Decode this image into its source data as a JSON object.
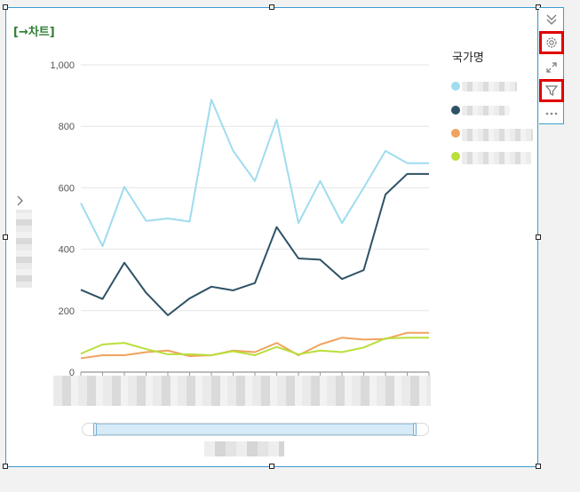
{
  "chart_title": "[→차트]",
  "toolbar": {
    "items": [
      {
        "icon": "double-chevron-down-icon",
        "highlighted": false
      },
      {
        "icon": "gear-icon",
        "highlighted": true
      },
      {
        "icon": "expand-icon",
        "highlighted": false
      },
      {
        "icon": "filter-icon",
        "highlighted": true
      },
      {
        "icon": "more-icon",
        "highlighted": false
      }
    ]
  },
  "legend": {
    "title": "국가명",
    "colors": [
      "#9fdcef",
      "#2e5266",
      "#f0a35e",
      "#b8df3a"
    ]
  },
  "colors": {
    "frame_border": "#3a9bd0",
    "title": "#2e7d32",
    "highlight": "#e00000"
  },
  "chart_data": {
    "type": "line",
    "ylim": [
      0,
      1000
    ],
    "y_ticks": [
      "0",
      "200",
      "400",
      "600",
      "800",
      "1,000"
    ],
    "y_tick_values": [
      0,
      200,
      400,
      600,
      800,
      1000
    ],
    "x_count": 17,
    "grid": true,
    "legend_position": "right",
    "series": [
      {
        "color": "#9fdcef",
        "values": [
          550,
          410,
          603,
          492,
          500,
          490,
          887,
          720,
          622,
          822,
          485,
          622,
          485,
          600,
          720,
          680,
          680
        ]
      },
      {
        "color": "#2e5266",
        "values": [
          268,
          238,
          356,
          258,
          185,
          240,
          278,
          266,
          290,
          472,
          370,
          366,
          303,
          332,
          578,
          645,
          645
        ]
      },
      {
        "color": "#f0a35e",
        "values": [
          45,
          55,
          55,
          65,
          70,
          52,
          55,
          70,
          65,
          95,
          55,
          90,
          112,
          106,
          108,
          128,
          128
        ]
      },
      {
        "color": "#b8df3a",
        "values": [
          60,
          90,
          95,
          75,
          58,
          58,
          55,
          68,
          55,
          82,
          58,
          70,
          65,
          80,
          110,
          112,
          112
        ]
      }
    ]
  }
}
